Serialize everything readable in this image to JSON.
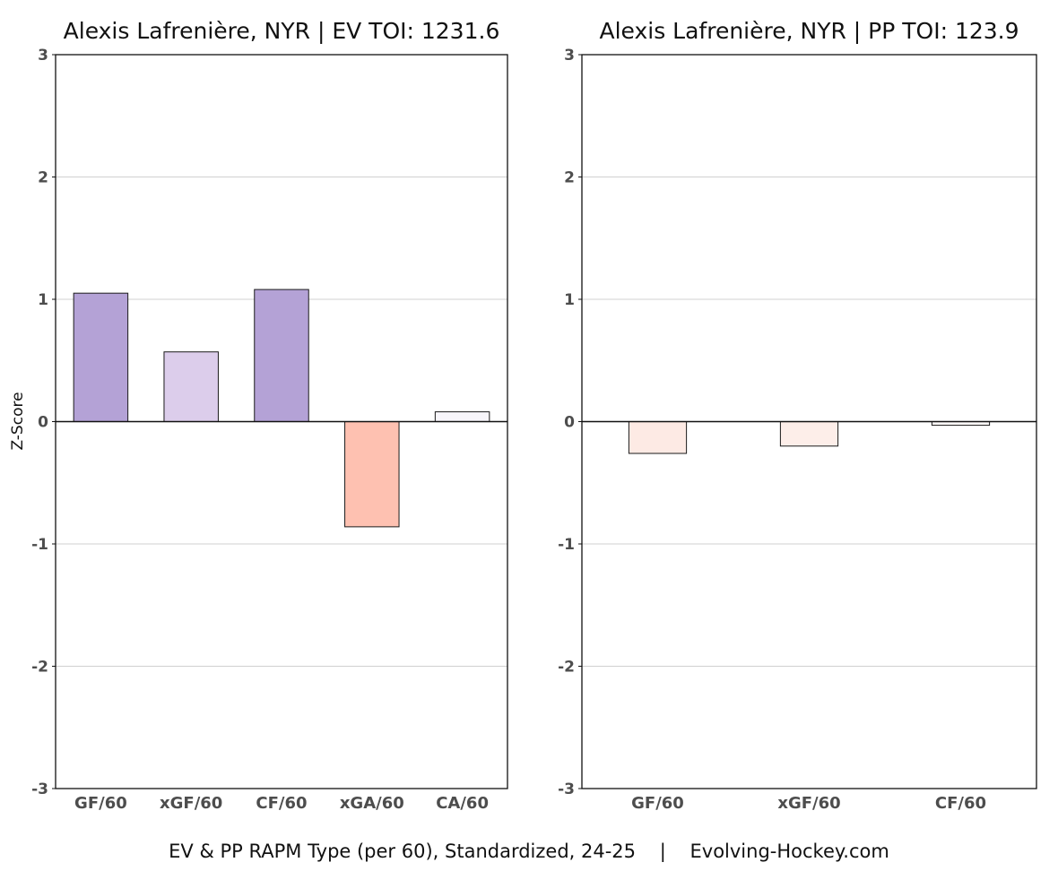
{
  "footer": "EV & PP RAPM Type (per 60), Standardized, 24-25    |    Evolving-Hockey.com",
  "ylabel": "Z-Score",
  "chart_data": [
    {
      "type": "bar",
      "title": "Alexis Lafrenière, NYR  |  EV TOI: 1231.6",
      "categories": [
        "GF/60",
        "xGF/60",
        "CF/60",
        "xGA/60",
        "CA/60"
      ],
      "values": [
        1.05,
        0.57,
        1.08,
        -0.86,
        0.08
      ],
      "colors": [
        "#b4a2d6",
        "#dccdeb",
        "#b4a2d6",
        "#fec1b1",
        "#f8f6fb"
      ],
      "ylabel": "Z-Score",
      "ylim": [
        -3,
        3
      ],
      "yticks": [
        3,
        2,
        1,
        0,
        -1,
        -2,
        -3
      ],
      "grid": true
    },
    {
      "type": "bar",
      "title": "Alexis Lafrenière, NYR  |  PP TOI: 123.9",
      "categories": [
        "GF/60",
        "xGF/60",
        "CF/60"
      ],
      "values": [
        -0.26,
        -0.2,
        -0.03
      ],
      "colors": [
        "#fdeae4",
        "#fdeee9",
        "#fdf9f8"
      ],
      "ylabel": "",
      "ylim": [
        -3,
        3
      ],
      "yticks": [
        3,
        2,
        1,
        0,
        -1,
        -2,
        -3
      ],
      "grid": true
    }
  ]
}
